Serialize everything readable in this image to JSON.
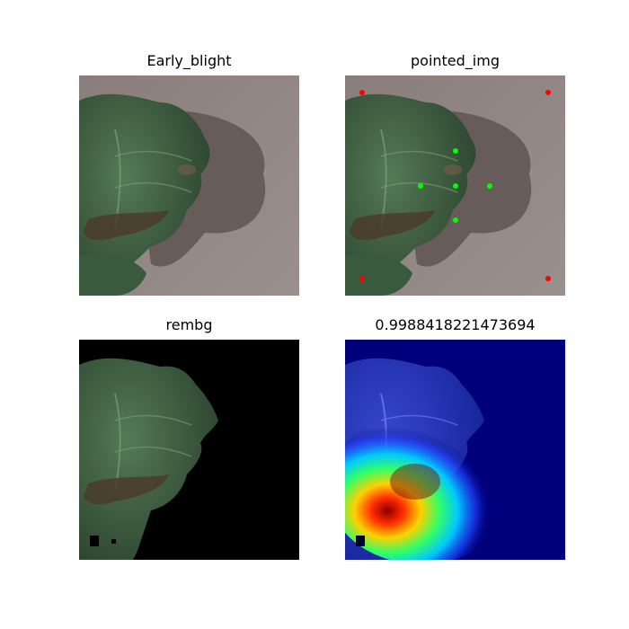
{
  "figure": {
    "panels": [
      {
        "title": "Early_blight"
      },
      {
        "title": "pointed_img"
      },
      {
        "title": "rembg"
      },
      {
        "title": "0.9988418221473694"
      }
    ],
    "colors": {
      "background_surface": "#8f8583",
      "leaf_dark": "#2f4a33",
      "leaf_mid": "#3f6045",
      "leaf_light": "#5e7d5c",
      "lesion": "#4a3a2c",
      "shadow": "#5e5250",
      "black": "#000000",
      "point_red": "#ff0000",
      "point_green": "#00ff00",
      "heat_bg": "#00007a"
    }
  }
}
